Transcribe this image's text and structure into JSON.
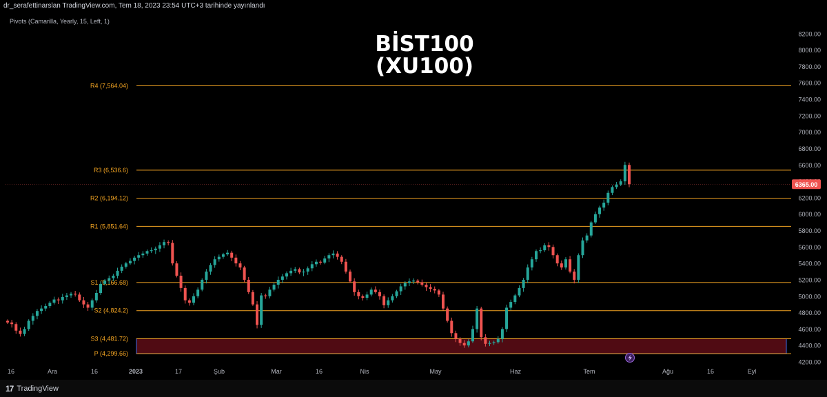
{
  "attribution": "dr_serafettinarslan TradingView.com, Tem 18, 2023 23:54 UTC+3 tarihinde yayınlandı",
  "indicator_legend": "Pivots (Camarilla, Yearly, 15, Left, 1)",
  "title_line1": "BİST100",
  "title_line2": "(XU100)",
  "footer": {
    "brand": "TradingView",
    "logo_mark": "17"
  },
  "colors": {
    "background": "#000000",
    "up": "#26a69a",
    "down": "#ef5350",
    "pivot_line": "#f5a623",
    "pivot_label": "#f5a623",
    "zone_fill": "#6b0f1a",
    "zone_border": "#3f6be8",
    "price_badge": "#ef5350",
    "axis_text": "#b2b5be"
  },
  "chart_data": {
    "type": "candlestick",
    "symbol": "BİST100 (XU100)",
    "ylim": [
      4200,
      8400
    ],
    "y_ticks": [
      "4200.00",
      "4400.00",
      "4600.00",
      "4800.00",
      "5000.00",
      "5200.00",
      "5400.00",
      "5600.00",
      "5800.00",
      "6000.00",
      "6200.00",
      "6400.00",
      "6600.00",
      "6800.00",
      "7000.00",
      "7200.00",
      "7400.00",
      "7600.00",
      "7800.00",
      "8000.00",
      "8200.00"
    ],
    "x_ticks": [
      "16",
      "Ara",
      "16",
      "2023",
      "17",
      "Şub",
      "Mar",
      "16",
      "Nis",
      "May",
      "Haz",
      "Tem",
      "Ağu",
      "16",
      "Eyl"
    ],
    "last_price": "6365.00",
    "pivots": [
      {
        "label": "R4 (7,564.04)",
        "value": 7564.04
      },
      {
        "label": "R3 (6,536.6)",
        "value": 6536.6
      },
      {
        "label": "R2 (6,194.12)",
        "value": 6194.12
      },
      {
        "label": "R1 (5,851.64)",
        "value": 5851.64
      },
      {
        "label": "S1 (5,166.68)",
        "value": 5166.68
      },
      {
        "label": "S2 (4,824.2)",
        "value": 4824.2
      },
      {
        "label": "S3 (4,481.72)",
        "value": 4481.72
      },
      {
        "label": "P (4,299.66)",
        "value": 4299.66
      }
    ],
    "zone": [
      4299.66,
      4481.72
    ],
    "closes": [
      4680,
      4660,
      4580,
      4540,
      4600,
      4700,
      4760,
      4820,
      4850,
      4880,
      4920,
      4960,
      4950,
      4990,
      5010,
      5030,
      5020,
      4950,
      4900,
      4860,
      4950,
      5040,
      5150,
      5190,
      5220,
      5250,
      5310,
      5360,
      5400,
      5430,
      5470,
      5500,
      5520,
      5550,
      5560,
      5580,
      5620,
      5660,
      5650,
      5400,
      5250,
      5100,
      4950,
      4920,
      5000,
      5080,
      5200,
      5300,
      5380,
      5450,
      5480,
      5510,
      5530,
      5470,
      5400,
      5350,
      5200,
      5050,
      4900,
      4650,
      5010,
      5000,
      5080,
      5140,
      5200,
      5240,
      5280,
      5310,
      5330,
      5290,
      5300,
      5340,
      5390,
      5420,
      5410,
      5460,
      5500,
      5520,
      5480,
      5420,
      5300,
      5180,
      5050,
      5000,
      4980,
      5020,
      5080,
      5050,
      5000,
      4890,
      4950,
      5000,
      5060,
      5120,
      5160,
      5180,
      5190,
      5170,
      5140,
      5110,
      5090,
      5070,
      5020,
      4850,
      4700,
      4550,
      4480,
      4430,
      4400,
      4450,
      4600,
      4850,
      4500,
      4420,
      4430,
      4440,
      4480,
      4600,
      4860,
      4930,
      5010,
      5100,
      5200,
      5350,
      5450,
      5550,
      5560,
      5620,
      5600,
      5500,
      5400,
      5350,
      5450,
      5300,
      5200,
      5500,
      5680,
      5740,
      5900,
      6000,
      6080,
      6140,
      6260,
      6330,
      6360,
      6400,
      6600,
      6365
    ]
  }
}
